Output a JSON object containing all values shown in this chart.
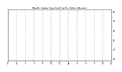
{
  "title": "Milw. Wi. - Outdoor Temp / Dew Pt. by Min. (24 Hrs.) (Alternate)",
  "bg_color": "#ffffff",
  "temp_color": "#ff0000",
  "dew_color": "#0000ff",
  "ylim": [
    28,
    82
  ],
  "yticks": [
    30,
    40,
    50,
    60,
    70,
    80
  ],
  "grid_color": "#999999",
  "n_points": 1440,
  "temp_seed": 42,
  "dew_seed": 99,
  "xlim": [
    0,
    1440
  ]
}
